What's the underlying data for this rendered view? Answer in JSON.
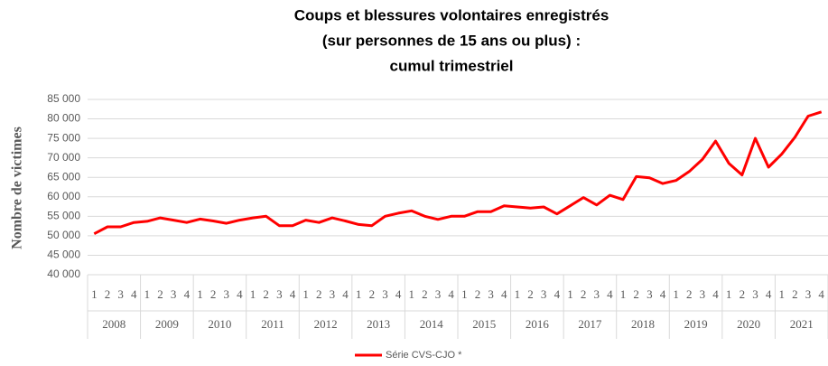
{
  "chart_data": {
    "type": "line",
    "title": [
      "Coups et blessures volontaires enregistrés",
      "(sur personnes de 15 ans ou plus) :",
      "cumul trimestriel"
    ],
    "y_label": "Nombre de victimes",
    "categories": [
      "1",
      "2",
      "3",
      "4",
      "1",
      "2",
      "3",
      "4",
      "1",
      "2",
      "3",
      "4",
      "1",
      "2",
      "3",
      "4",
      "1",
      "2",
      "3",
      "4",
      "1",
      "2",
      "3",
      "4",
      "1",
      "2",
      "3",
      "4",
      "1",
      "2",
      "3",
      "4",
      "1",
      "2",
      "3",
      "4",
      "1",
      "2",
      "3",
      "4",
      "1",
      "2",
      "3",
      "4",
      "1",
      "2",
      "3",
      "4",
      "1",
      "2",
      "3",
      "4",
      "1",
      "2",
      "3",
      "4"
    ],
    "groups": [
      "2008",
      "2009",
      "2010",
      "2011",
      "2012",
      "2013",
      "2014",
      "2015",
      "2016",
      "2017",
      "2018",
      "2019",
      "2020",
      "2021"
    ],
    "series": [
      {
        "name": "Série CVS-CJO *",
        "color": "#ff0000",
        "values": [
          50500,
          52300,
          52300,
          53400,
          53700,
          54600,
          54000,
          53400,
          54300,
          53800,
          53200,
          54000,
          54600,
          55000,
          52600,
          52600,
          54000,
          53400,
          54600,
          53800,
          52900,
          52600,
          55000,
          55800,
          56400,
          55000,
          54200,
          55000,
          55000,
          56200,
          56200,
          57700,
          57400,
          57100,
          57400,
          55600,
          57700,
          59800,
          57900,
          60400,
          59300,
          65200,
          64900,
          63400,
          64200,
          66500,
          69600,
          74300,
          68600,
          65600,
          75000,
          67600,
          71000,
          75300,
          80700,
          81800
        ]
      }
    ],
    "ylim": [
      40000,
      85000
    ],
    "yticks": [
      {
        "value": 40000,
        "label": "40 000"
      },
      {
        "value": 45000,
        "label": "45 000"
      },
      {
        "value": 50000,
        "label": "50 000"
      },
      {
        "value": 55000,
        "label": "55 000"
      },
      {
        "value": 60000,
        "label": "60 000"
      },
      {
        "value": 65000,
        "label": "65 000"
      },
      {
        "value": 70000,
        "label": "70 000"
      },
      {
        "value": 75000,
        "label": "75 000"
      },
      {
        "value": 80000,
        "label": "80 000"
      },
      {
        "value": 85000,
        "label": "85 000"
      }
    ],
    "grid": true,
    "legend": "bottom"
  }
}
